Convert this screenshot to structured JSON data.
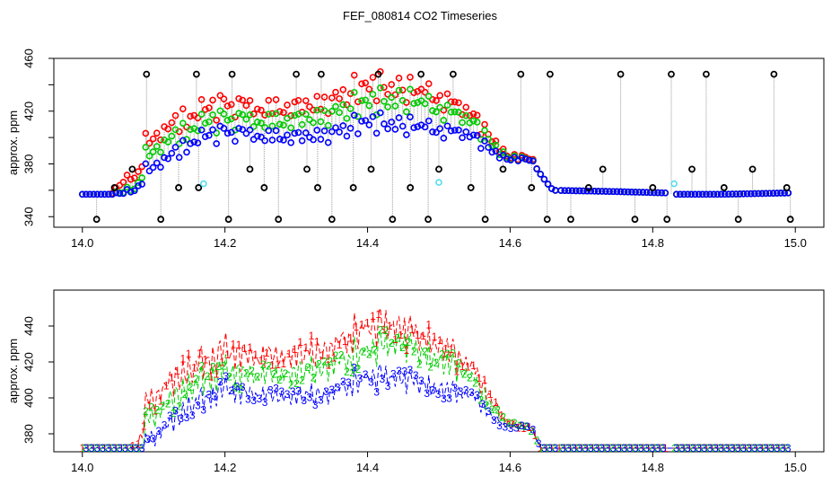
{
  "figure": {
    "title": "FEF_080814  CO2 Timeseries"
  },
  "colors": {
    "series1": "#ff0000",
    "series2": "#00cc00",
    "series3": "#0000ff",
    "sparse": "#000000",
    "cyan_markers": "#55ddee",
    "drop_lines": "#999999"
  },
  "chart_data": [
    {
      "type": "scatter",
      "panel": "top",
      "ylabel": "approx. ppm",
      "xlim": [
        13.96,
        15.04
      ],
      "ylim": [
        332,
        460
      ],
      "xticks": [
        14.0,
        14.2,
        14.4,
        14.6,
        14.8,
        15.0
      ],
      "xtick_labels": [
        "14.0",
        "14.2",
        "14.4",
        "14.6",
        "14.8",
        "15.0"
      ],
      "yticks": [
        340,
        360,
        380,
        400,
        420,
        440,
        460
      ],
      "ytick_labels": [
        "340",
        "",
        "380",
        "",
        "420",
        "",
        "460"
      ],
      "grid": false,
      "legend": "none",
      "sparse_points": {
        "x": [
          14.02,
          14.045,
          14.07,
          14.09,
          14.11,
          14.135,
          14.16,
          14.163,
          14.205,
          14.21,
          14.235,
          14.255,
          14.275,
          14.3,
          14.315,
          14.33,
          14.335,
          14.35,
          14.38,
          14.405,
          14.415,
          14.435,
          14.46,
          14.475,
          14.485,
          14.5,
          14.52,
          14.545,
          14.565,
          14.59,
          14.615,
          14.63,
          14.652,
          14.656,
          14.685,
          14.71,
          14.73,
          14.755,
          14.775,
          14.8,
          14.82,
          14.826,
          14.855,
          14.875,
          14.9,
          14.92,
          14.94,
          14.97,
          14.988,
          14.993
        ],
        "y": [
          338,
          362,
          376,
          448,
          338,
          362,
          448,
          362,
          338,
          448,
          376,
          362,
          338,
          448,
          376,
          362,
          448,
          338,
          362,
          376,
          448,
          338,
          362,
          448,
          338,
          376,
          448,
          362,
          338,
          376,
          448,
          362,
          338,
          448,
          338,
          362,
          376,
          448,
          338,
          362,
          338,
          448,
          376,
          448,
          362,
          338,
          376,
          448,
          362,
          338
        ]
      },
      "cyan_points": {
        "x": [
          14.17,
          14.5,
          14.83
        ],
        "y": [
          365,
          366,
          365
        ]
      }
    },
    {
      "type": "line",
      "panel": "bottom",
      "ylabel": "approx. ppm",
      "xlim": [
        13.96,
        15.04
      ],
      "ylim": [
        370,
        460
      ],
      "xticks": [
        14.0,
        14.2,
        14.4,
        14.6,
        14.8,
        15.0
      ],
      "xtick_labels": [
        "14.0",
        "14.2",
        "14.4",
        "14.6",
        "14.8",
        "15.0"
      ],
      "yticks": [
        380,
        400,
        420,
        440
      ],
      "ytick_labels": [
        "380",
        "400",
        "420",
        "440"
      ],
      "grid": false,
      "legend": "none",
      "point_labels": [
        "1",
        "2",
        "3"
      ]
    }
  ],
  "series_profile": {
    "x": [
      14.0,
      14.04,
      14.06,
      14.08,
      14.09,
      14.12,
      14.16,
      14.2,
      14.25,
      14.3,
      14.35,
      14.4,
      14.45,
      14.5,
      14.55,
      14.58,
      14.6,
      14.63,
      14.64,
      14.66,
      14.75,
      14.82,
      14.83,
      14.9,
      14.99
    ],
    "s3": [
      357,
      357,
      358,
      362,
      376,
      385,
      398,
      404,
      402,
      401,
      403,
      412,
      410,
      406,
      400,
      388,
      384,
      383,
      374,
      360,
      359,
      358,
      357,
      357,
      358
    ],
    "s2": [
      357,
      357,
      359,
      364,
      388,
      398,
      408,
      414,
      413,
      414,
      418,
      427,
      430,
      422,
      410,
      392,
      385,
      383,
      374,
      360,
      359,
      358,
      357,
      357,
      358
    ],
    "s1": [
      357,
      357,
      368,
      372,
      398,
      408,
      418,
      425,
      423,
      424,
      428,
      440,
      438,
      431,
      415,
      395,
      386,
      384,
      374,
      360,
      359,
      358,
      357,
      357,
      358
    ],
    "swing": [
      0,
      0,
      4,
      6,
      8,
      9,
      9,
      10,
      10,
      10,
      11,
      11,
      11,
      10,
      8,
      4,
      2,
      2,
      1,
      0,
      0,
      0,
      0,
      0,
      0
    ]
  }
}
